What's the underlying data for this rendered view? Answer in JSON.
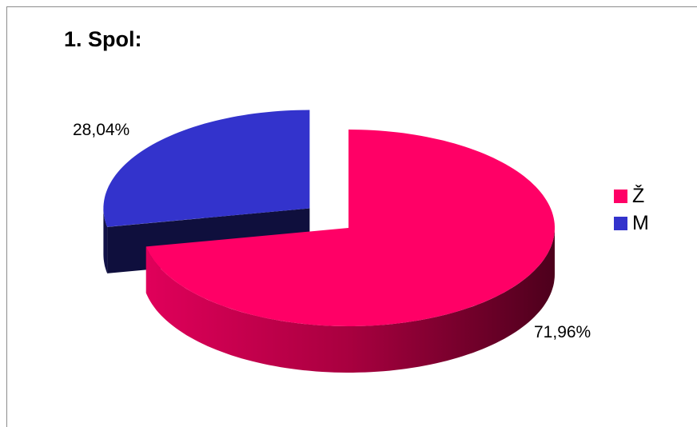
{
  "chart_data": {
    "type": "pie",
    "title": "1. Spol:",
    "slices": [
      {
        "name": "Ž",
        "value": 71.96,
        "label": "71,96%",
        "color": "#ff0066",
        "exploded": false
      },
      {
        "name": "M",
        "value": 28.04,
        "label": "28,04%",
        "color": "#3333cc",
        "exploded": true
      }
    ],
    "legend_position": "right",
    "three_d": true
  }
}
